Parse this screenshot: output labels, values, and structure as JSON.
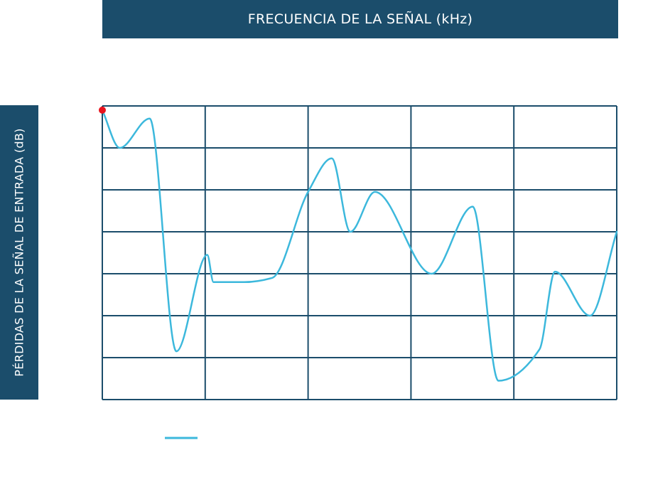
{
  "colors": {
    "banner": "#1b4d6b",
    "grid": "#1b4d6b",
    "line": "#3cb8dc",
    "start_marker": "#e8141e"
  },
  "chart_data": {
    "type": "line",
    "title": "FRECUENCIA DE LA SEÑAL (kHz)",
    "xlabel": "FRECUENCIA DE LA SEÑAL (kHz)",
    "ylabel": "PÉRDIDAS DE LA SEÑAL DE ENTRADA (dB)",
    "xlim": [
      0,
      5
    ],
    "ylim": [
      0,
      7
    ],
    "grid": true,
    "legend": "bottom-left",
    "series": [
      {
        "name": "",
        "x": [
          0,
          0.17,
          0.46,
          0.72,
          1.02,
          1.08,
          1.38,
          1.65,
          2.0,
          2.23,
          2.41,
          2.65,
          3.2,
          3.6,
          3.85,
          4.25,
          4.4,
          4.74,
          5.0
        ],
        "y": [
          6.9,
          6.0,
          6.7,
          1.15,
          3.45,
          2.8,
          2.8,
          2.9,
          4.95,
          5.75,
          4.0,
          4.95,
          3.0,
          4.6,
          0.45,
          1.2,
          3.05,
          2.0,
          4.0
        ]
      }
    ]
  }
}
